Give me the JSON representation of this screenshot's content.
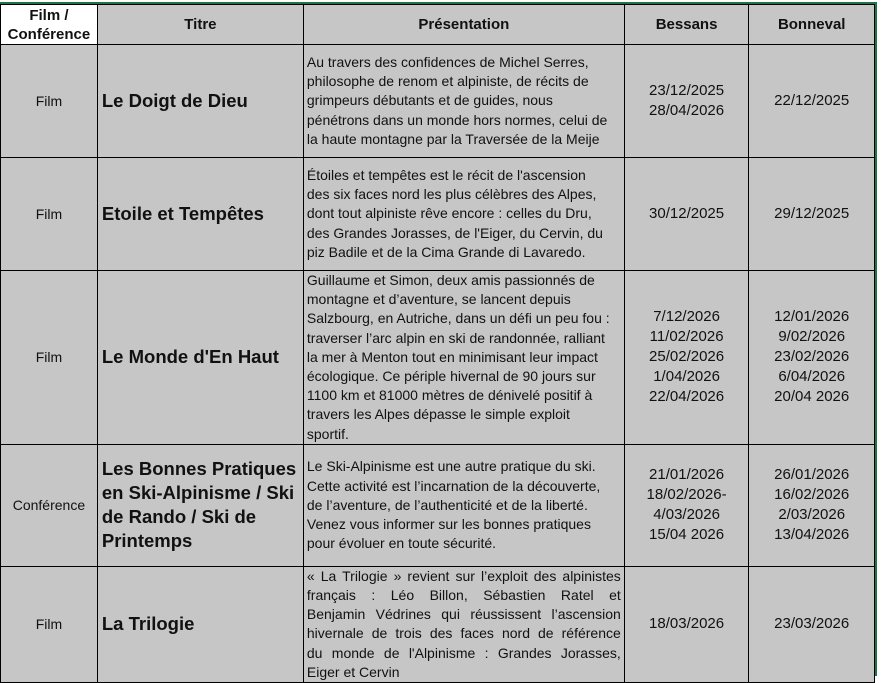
{
  "headers": {
    "type": "Film / Conférence",
    "title": "Titre",
    "description": "Présentation",
    "bessans": "Bessans",
    "bonneval": "Bonneval"
  },
  "rows": [
    {
      "type": "Film",
      "title": "Le Doigt de Dieu",
      "description": [
        "Au travers des confidences de Michel Serres,",
        "philosophe de renom et alpiniste, de récits de",
        "grimpeurs débutants et de guides, nous",
        "pénétrons dans un monde hors normes, celui de",
        "la haute montagne par la Traversée de la Meije"
      ],
      "bessans": [
        "23/12/2025",
        "28/04/2026"
      ],
      "bonneval": [
        "22/12/2025"
      ]
    },
    {
      "type": "Film",
      "title": "Etoile et Tempêtes",
      "description": [
        "Étoiles et tempêtes est le récit de l'ascension",
        "des six faces nord les plus célèbres des Alpes,",
        "dont tout alpiniste rêve encore : celles du Dru,",
        "des Grandes Jorasses, de l'Eiger, du Cervin, du",
        "piz Badile et de la Cima Grande di Lavaredo."
      ],
      "bessans": [
        "30/12/2025"
      ],
      "bonneval": [
        "29/12/2025"
      ]
    },
    {
      "type": "Film",
      "title": "Le Monde d'En Haut",
      "description": [
        "Guillaume et Simon, deux amis passionnés de",
        "montagne et d’aventure, se lancent depuis",
        "Salzbourg, en Autriche, dans un défi un peu fou :",
        "traverser l’arc alpin en ski de randonnée, ralliant",
        "la mer à Menton tout en minimisant leur impact",
        "écologique. Ce périple hivernal de 90 jours sur",
        "1100 km et 81000 mètres de dénivelé positif à",
        "travers les Alpes dépasse le simple exploit",
        "sportif."
      ],
      "bessans": [
        "7/12/2026",
        "11/02/2026",
        "25/02/2026",
        "1/04/2026",
        "22/04/2026"
      ],
      "bonneval": [
        "12/01/2026",
        "9/02/2026",
        "23/02/2026",
        "6/04/2026",
        "20/04 2026"
      ]
    },
    {
      "type": "Conférence",
      "title": "Les Bonnes Pratiques en Ski-Alpinisme / Ski de Rando / Ski de Printemps",
      "description": [
        "Le Ski-Alpinisme est une autre pratique du ski.",
        "Cette activité est l’incarnation de la découverte,",
        "de l’aventure, de l’authenticité et de la liberté.",
        "Venez vous informer sur les bonnes pratiques",
        "pour évoluer en toute sécurité."
      ],
      "bessans": [
        "21/01/2026",
        "18/02/2026-",
        "4/03/2026",
        "15/04 2026"
      ],
      "bonneval": [
        "26/01/2026",
        "16/02/2026",
        "2/03/2026",
        "13/04/2026"
      ]
    },
    {
      "type": "Film",
      "title": "La Trilogie",
      "description": [
        "« La Trilogie » revient sur l’exploit des alpinistes",
        "français : Léo Billon, Sébastien Ratel et",
        "Benjamin Védrines qui réussissent l’ascension",
        "hivernale de trois des faces nord de référence",
        "du monde de l'Alpinisme : Grandes Jorasses,",
        "Eiger et Cervin"
      ],
      "bessans": [
        "18/03/2026"
      ],
      "bonneval": [
        "23/03/2026"
      ]
    }
  ]
}
